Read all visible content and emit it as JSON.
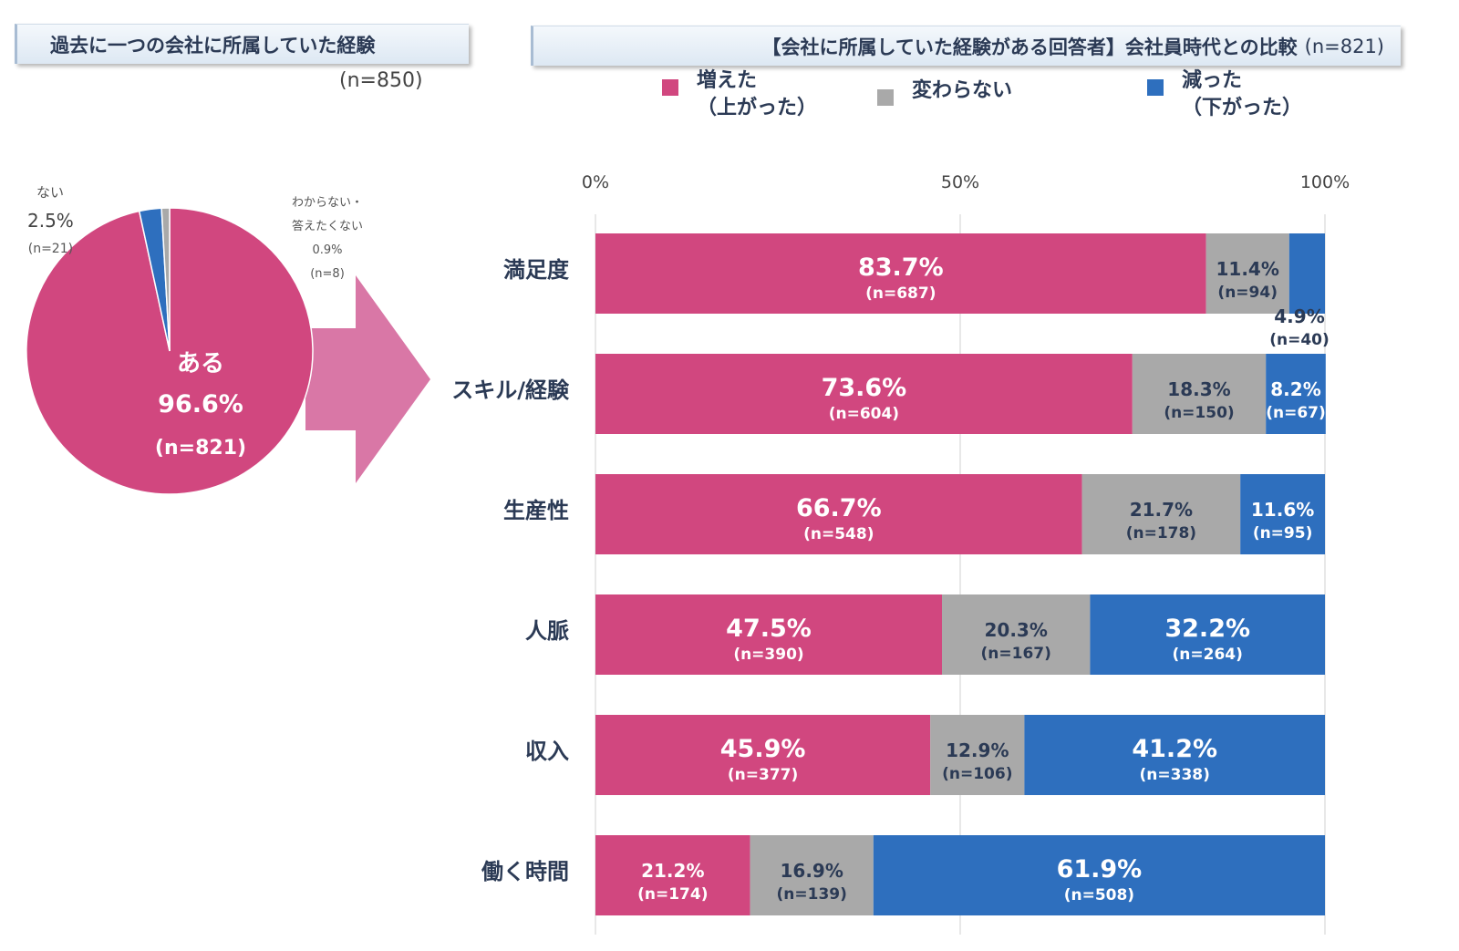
{
  "left_title": "過去に一つの会社に所属していた経験",
  "left_n": "(n=850)",
  "right_title": "【会社に所属していた経験がある回答者】会社員時代との比較",
  "right_n": "(n=821)",
  "legend": [
    {
      "label": "増えた\n（上がった）",
      "color": "#d1477f"
    },
    {
      "label": "変わらない",
      "color": "#a9a9a9"
    },
    {
      "label": "減った\n（下がった）",
      "color": "#2e6fbe"
    }
  ],
  "arrow_color": "#d977a6",
  "pie": {
    "slices": [
      {
        "category": "ある",
        "percent": "96.6%",
        "n": "(n=821)",
        "value": 96.6,
        "color": "#d1477f"
      },
      {
        "category": "ない",
        "percent": "2.5%",
        "n": "(n=21)",
        "value": 2.5,
        "color": "#2e6fbe"
      },
      {
        "category": "わからない・\n答えたくない",
        "percent": "0.9%",
        "n": "(n=8)",
        "value": 0.9,
        "color": "#a9a9a9"
      }
    ]
  },
  "chart_data": {
    "type": "bar",
    "orientation": "horizontal",
    "stacked": true,
    "xlim": [
      0,
      100
    ],
    "ticks": [
      "0%",
      "50%",
      "100%"
    ],
    "categories": [
      "満足度",
      "スキル/経験",
      "生産性",
      "人脈",
      "収入",
      "働く時間"
    ],
    "series": [
      {
        "name": "増えた（上がった）",
        "color": "#d1477f",
        "values": [
          83.7,
          73.6,
          66.7,
          47.5,
          45.9,
          21.2
        ],
        "n": [
          "(n=687)",
          "(n=604)",
          "(n=548)",
          "(n=390)",
          "(n=377)",
          "(n=174)"
        ]
      },
      {
        "name": "変わらない",
        "color": "#a9a9a9",
        "values": [
          11.4,
          18.3,
          21.7,
          20.3,
          12.9,
          16.9
        ],
        "n": [
          "(n=94)",
          "(n=150)",
          "(n=178)",
          "(n=167)",
          "(n=106)",
          "(n=139)"
        ]
      },
      {
        "name": "減った（下がった）",
        "color": "#2e6fbe",
        "values": [
          4.9,
          8.2,
          11.6,
          32.2,
          41.2,
          61.9
        ],
        "n": [
          "(n=40)",
          "(n=67)",
          "(n=95)",
          "(n=264)",
          "(n=338)",
          "(n=508)"
        ]
      }
    ]
  }
}
